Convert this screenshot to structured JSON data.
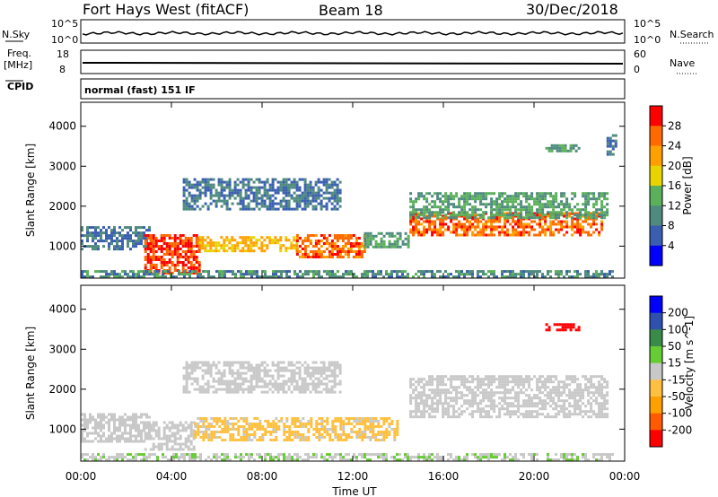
{
  "header": {
    "station": "Fort Hays West (fitACF)",
    "beam": "Beam 18",
    "date": "30/Dec/2018"
  },
  "top_panels": {
    "nsky_label": "N.Sky",
    "nsearch_label": "N.Search",
    "noise_ticks": [
      "10^5",
      "10^0"
    ],
    "freq_label": "Freq.",
    "freq_unit": "[MHz]",
    "freq_ticks": [
      "18",
      "8"
    ],
    "nave_label": "Nave",
    "nave_ticks": [
      "60",
      "0"
    ],
    "cpid_label": "CPID",
    "cpid_text": "normal (fast) 151 IF"
  },
  "colors": {
    "power_scale": [
      "#0000ff",
      "#3a5fb0",
      "#4f8a7e",
      "#5bb05b",
      "#e8d400",
      "#ffa000",
      "#ff6a00",
      "#ff0000"
    ],
    "velocity_scale": [
      "#ff0000",
      "#ff5a00",
      "#ffa000",
      "#ffc040",
      "#c8c8c8",
      "#66cc33",
      "#3a8a4a",
      "#3050b0",
      "#0000ff"
    ]
  },
  "chart_data": [
    {
      "type": "heatmap",
      "title": "Power",
      "xlabel": "Time UT",
      "ylabel": "Slant Range [km]",
      "x_ticks": [
        "00:00",
        "04:00",
        "08:00",
        "12:00",
        "16:00",
        "20:00",
        "00:00"
      ],
      "y_ticks": [
        "1000",
        "2000",
        "3000",
        "4000"
      ],
      "ylim": [
        200,
        4600
      ],
      "xlim": [
        0,
        24
      ],
      "colorbar_label": "Power [dB]",
      "colorbar_ticks": [
        "4",
        "8",
        "12",
        "16",
        "20",
        "24",
        "28"
      ],
      "colorbar_range": [
        0,
        32
      ],
      "regions": [
        {
          "t0": 0.0,
          "t1": 3.0,
          "r0": 900,
          "r1": 1500,
          "value": 8
        },
        {
          "t0": 2.8,
          "t1": 5.2,
          "r0": 350,
          "r1": 1300,
          "value": 28
        },
        {
          "t0": 5.2,
          "t1": 9.5,
          "r0": 850,
          "r1": 1250,
          "value": 20
        },
        {
          "t0": 9.5,
          "t1": 12.5,
          "r0": 750,
          "r1": 1300,
          "value": 26
        },
        {
          "t0": 12.5,
          "t1": 14.5,
          "r0": 950,
          "r1": 1350,
          "value": 12
        },
        {
          "t0": 4.5,
          "t1": 11.5,
          "r0": 1900,
          "r1": 2700,
          "value": 8
        },
        {
          "t0": 14.5,
          "t1": 23.0,
          "r0": 1300,
          "r1": 1850,
          "value": 26
        },
        {
          "t0": 14.5,
          "t1": 23.2,
          "r0": 1700,
          "r1": 2350,
          "value": 12
        },
        {
          "t0": 0.0,
          "t1": 23.5,
          "r0": 250,
          "r1": 400,
          "value": 10
        },
        {
          "t0": 20.5,
          "t1": 22.0,
          "r0": 3350,
          "r1": 3550,
          "value": 12
        },
        {
          "t0": 23.2,
          "t1": 23.6,
          "r0": 3300,
          "r1": 3800,
          "value": 8
        }
      ]
    },
    {
      "type": "heatmap",
      "title": "Velocity",
      "xlabel": "Time UT",
      "ylabel": "Slant Range [km]",
      "x_ticks": [
        "00:00",
        "04:00",
        "08:00",
        "12:00",
        "16:00",
        "20:00",
        "00:00"
      ],
      "y_ticks": [
        "1000",
        "2000",
        "3000",
        "4000"
      ],
      "ylim": [
        200,
        4600
      ],
      "xlim": [
        0,
        24
      ],
      "colorbar_label": "Velocity [m s^-1]",
      "colorbar_ticks": [
        "200",
        "100",
        "50",
        "15",
        "-15",
        "-50",
        "-100",
        "-200"
      ],
      "colorbar_range": [
        -250,
        250
      ],
      "regions": [
        {
          "t0": 0.0,
          "t1": 3.0,
          "r0": 700,
          "r1": 1400,
          "value": 0
        },
        {
          "t0": 2.8,
          "t1": 5.0,
          "r0": 500,
          "r1": 1200,
          "value": 0
        },
        {
          "t0": 5.0,
          "t1": 14.0,
          "r0": 750,
          "r1": 1300,
          "value": -40
        },
        {
          "t0": 4.5,
          "t1": 11.5,
          "r0": 1900,
          "r1": 2700,
          "value": 0
        },
        {
          "t0": 14.5,
          "t1": 23.2,
          "r0": 1300,
          "r1": 2350,
          "value": 0
        },
        {
          "t0": 20.5,
          "t1": 22.0,
          "r0": 3450,
          "r1": 3650,
          "value": -220
        },
        {
          "t0": 0.0,
          "t1": 23.5,
          "r0": 250,
          "r1": 400,
          "value": 20
        }
      ]
    }
  ]
}
